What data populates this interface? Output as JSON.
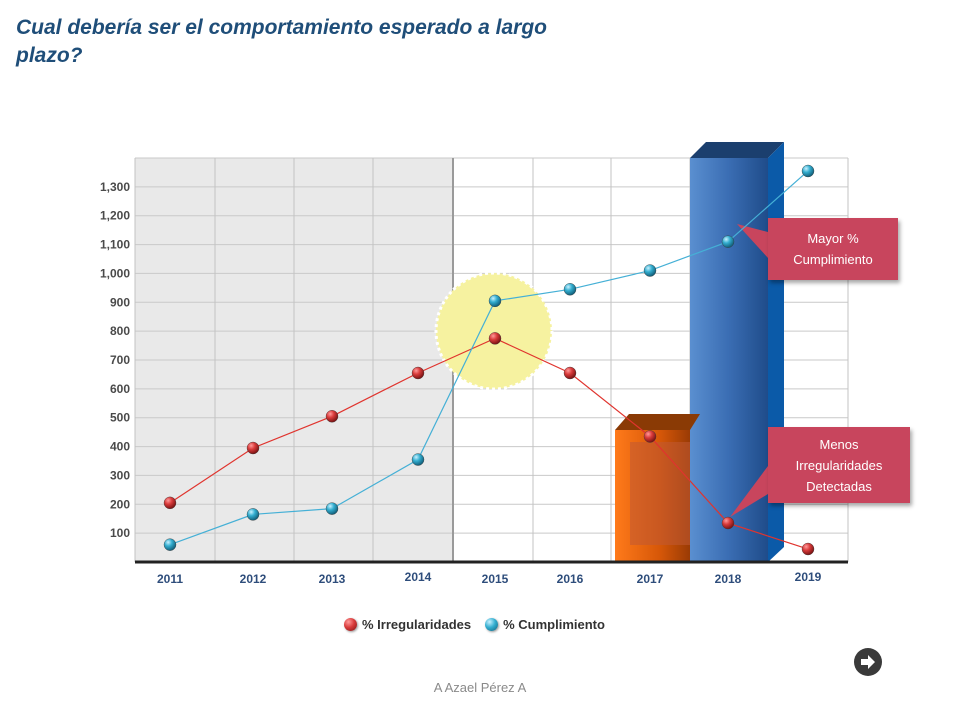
{
  "slide": {
    "title": "Cual debería ser el comportamiento esperado a largo plazo?",
    "footer": "A Azael Pérez A"
  },
  "chart_data": {
    "type": "line",
    "categories": [
      "2011",
      "2012",
      "2013",
      "2014",
      "2015",
      "2016",
      "2017",
      "2018",
      "2019"
    ],
    "y_ticks": [
      "100",
      "200",
      "300",
      "400",
      "500",
      "600",
      "700",
      "800",
      "900",
      "1,000",
      "1,100",
      "1,200",
      "1,300"
    ],
    "ylim": [
      0,
      1400
    ],
    "grid": true,
    "legend_position": "bottom",
    "series": [
      {
        "name": "% Irregularidades",
        "color": "#d93b3b",
        "line_color": "#e0342e",
        "values": [
          205,
          395,
          505,
          655,
          775,
          655,
          435,
          135,
          45
        ]
      },
      {
        "name": "% Cumplimiento",
        "color": "#33aed0",
        "line_color": "#45b0d6",
        "values": [
          60,
          165,
          185,
          355,
          905,
          945,
          1010,
          1110,
          1355
        ]
      }
    ],
    "annotations": [
      {
        "text": "Mayor % Cumplimiento"
      },
      {
        "text": "Menos Irregularidades Detectadas"
      }
    ]
  },
  "colors": {
    "title": "#1f4e79",
    "callout": "#c8455d",
    "blue_bar": "#2f64a8",
    "orange_bar": "#e8600c",
    "highlight": "#f6f2a0"
  },
  "icons": {
    "next": "circle-arrow-right-icon"
  }
}
